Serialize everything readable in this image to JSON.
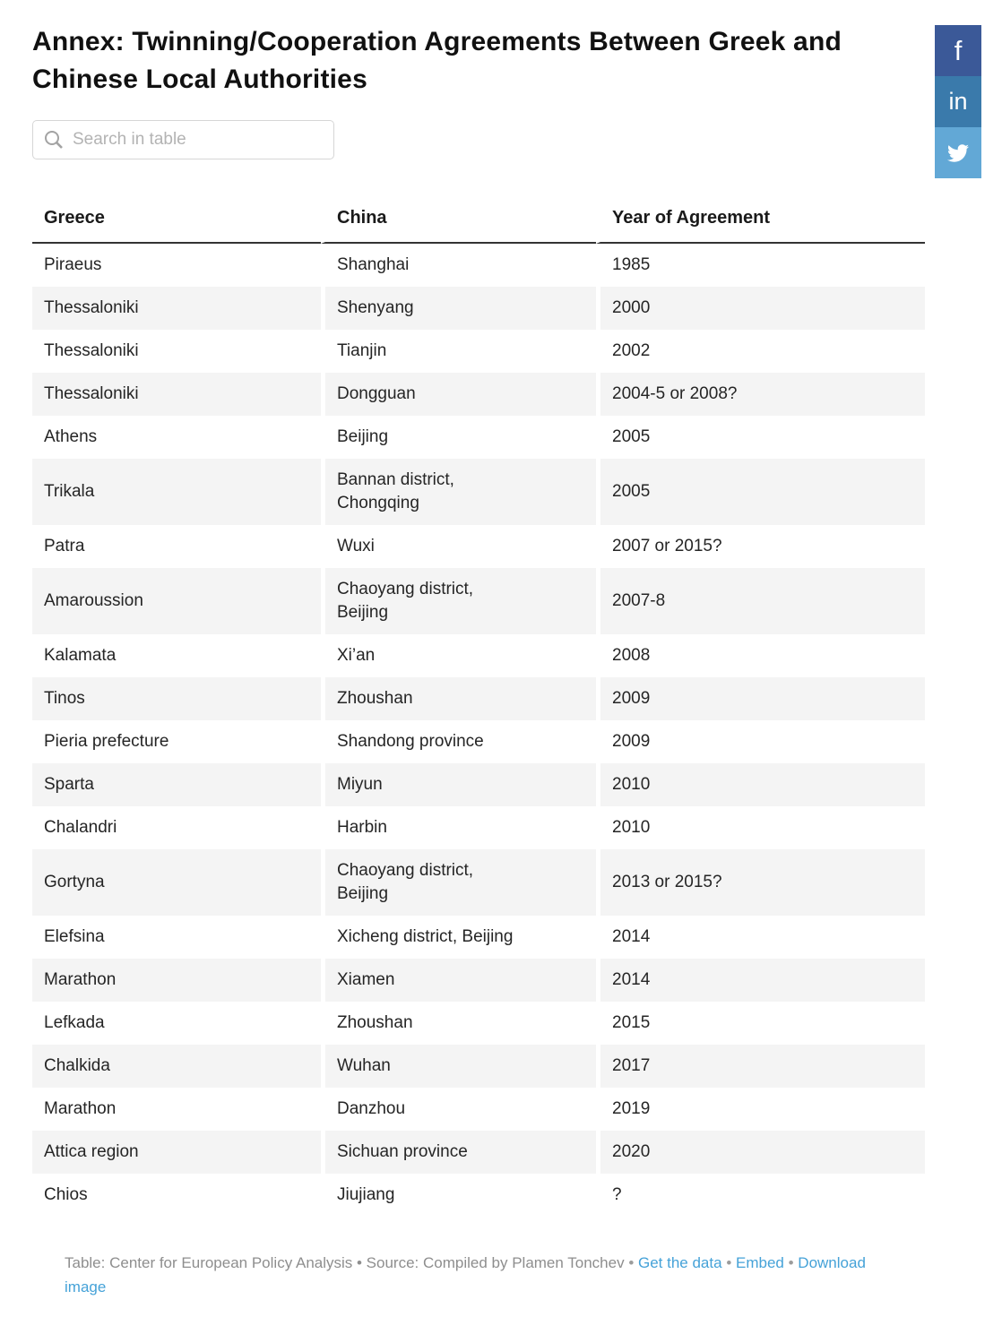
{
  "page": {
    "title": "Annex: Twinning/Cooperation Agreements Between Greek and Chinese Local Authorities"
  },
  "search": {
    "placeholder": "Search in table",
    "value": ""
  },
  "social": {
    "facebook_label": "f",
    "linkedin_label": "in",
    "twitter_icon": "twitter-bird",
    "colors": {
      "facebook": "#3b5998",
      "linkedin": "#3a7aab",
      "twitter": "#62a8d6"
    }
  },
  "chart_data": {
    "type": "table",
    "title": "Annex: Twinning/Cooperation Agreements Between Greek and Chinese Local Authorities",
    "columns": [
      "Greece",
      "China",
      "Year of Agreement"
    ],
    "rows": [
      [
        "Piraeus",
        "Shanghai",
        "1985"
      ],
      [
        "Thessaloniki",
        "Shenyang",
        "2000"
      ],
      [
        "Thessaloniki",
        "Tianjin",
        "2002"
      ],
      [
        "Thessaloniki",
        "Dongguan",
        "2004-5 or 2008?"
      ],
      [
        "Athens",
        "Beijing",
        "2005"
      ],
      [
        "Trikala",
        "Bannan district,\nChongqing",
        "2005"
      ],
      [
        "Patra",
        "Wuxi",
        "2007 or 2015?"
      ],
      [
        "Amaroussion",
        "Chaoyang district,\nBeijing",
        "2007-8"
      ],
      [
        "Kalamata",
        "Xi’an",
        "2008"
      ],
      [
        "Tinos",
        "Zhoushan",
        "2009"
      ],
      [
        "Pieria prefecture",
        "Shandong province",
        "2009"
      ],
      [
        "Sparta",
        "Miyun",
        "2010"
      ],
      [
        "Chalandri",
        "Harbin",
        "2010"
      ],
      [
        "Gortyna",
        "Chaoyang district,\nBeijing",
        "2013 or 2015?"
      ],
      [
        "Elefsina",
        "Xicheng district, Beijing",
        "2014"
      ],
      [
        "Marathon",
        "Xiamen",
        "2014"
      ],
      [
        "Lefkada",
        "Zhoushan",
        "2015"
      ],
      [
        "Chalkida",
        "Wuhan",
        "2017"
      ],
      [
        "Marathon",
        "Danzhou",
        "2019"
      ],
      [
        "Attica region",
        "Sichuan province",
        "2020"
      ],
      [
        "Chios",
        "Jiujiang",
        "?"
      ]
    ],
    "layout_hints": {
      "stripe_color": "#f4f4f4",
      "header_rule_color": "#333333",
      "link_color": "#45a2d8"
    }
  },
  "footer": {
    "credit": "Table: Center for European Policy Analysis • Source: Compiled by Plamen Tonchev",
    "separator": "•",
    "links": {
      "get_data": "Get the data",
      "embed": "Embed",
      "download": "Download image"
    }
  }
}
